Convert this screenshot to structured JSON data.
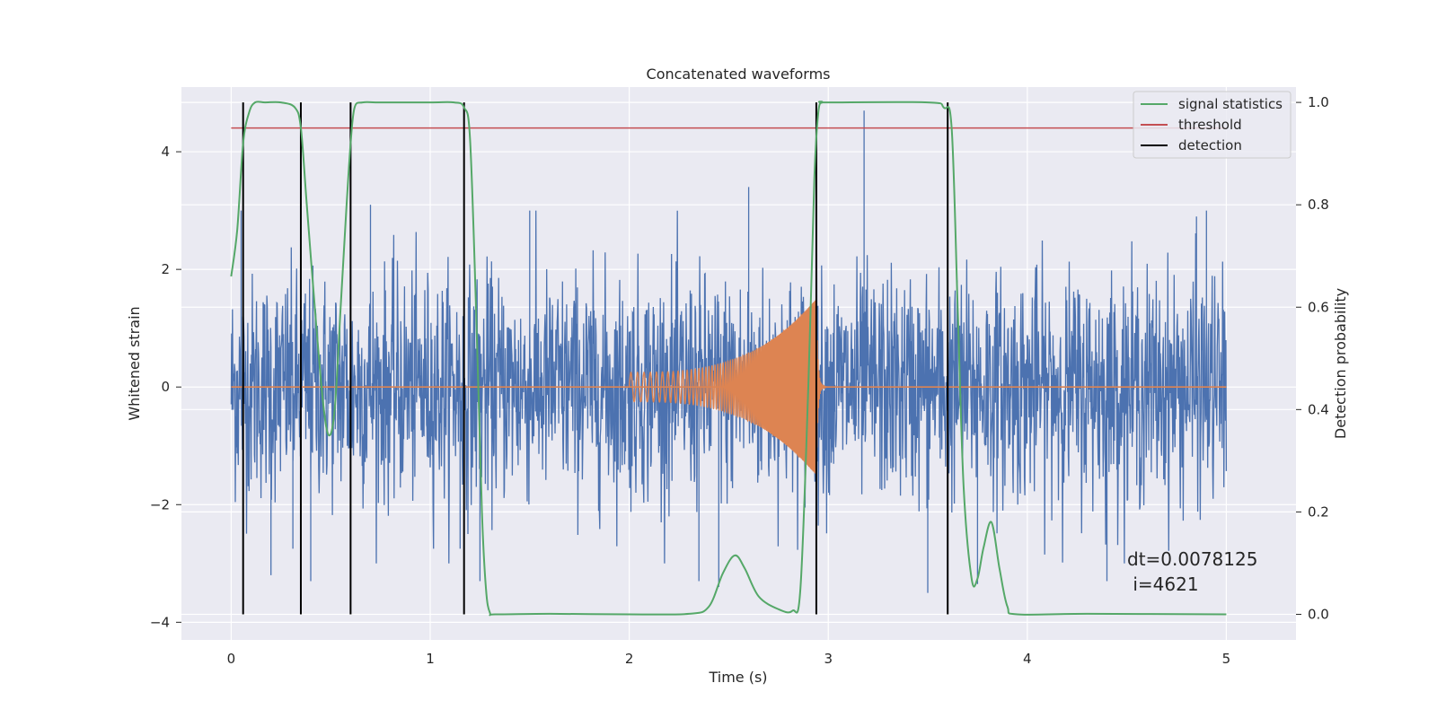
{
  "chart_data": {
    "type": "line",
    "title": "Concatenated waveforms",
    "xlabel": "Time (s)",
    "ylabel": "Whitened strain",
    "y2label": "Detection probability",
    "xlim": [
      -0.25,
      5.35
    ],
    "ylim": [
      -4.3,
      5.1
    ],
    "y2lim": [
      -0.05,
      1.03
    ],
    "xticks": [
      0,
      1,
      2,
      3,
      4,
      5
    ],
    "xtick_labels": [
      "0",
      "1",
      "2",
      "3",
      "4",
      "5"
    ],
    "yticks": [
      -4,
      -2,
      0,
      2,
      4
    ],
    "ytick_labels": [
      "−4",
      "−2",
      "0",
      "2",
      "4"
    ],
    "y2ticks": [
      0.0,
      0.2,
      0.4,
      0.6,
      0.8,
      1.0
    ],
    "y2tick_labels": [
      "0.0",
      "0.2",
      "0.4",
      "0.6",
      "0.8",
      "1.0"
    ],
    "grid": true,
    "legend_position": "top-right",
    "colors": {
      "background": "#eaeaf2",
      "grid": "#ffffff",
      "strain": "#4c72b0",
      "injection": "#dd8452",
      "signal_statistics": "#55a868",
      "threshold": "#c44e52",
      "detection": "#000000"
    },
    "series": [
      {
        "name": "",
        "axis": "left",
        "description_role": "whitened strain noise",
        "x_range": [
          0,
          5
        ],
        "sigma": 0.95,
        "spikes": [
          [
            0.06,
            -3.35
          ],
          [
            0.05,
            3.0
          ],
          [
            0.2,
            -3.2
          ],
          [
            0.31,
            -2.75
          ],
          [
            0.35,
            -1.5
          ],
          [
            0.4,
            -3.3
          ],
          [
            0.7,
            3.1
          ],
          [
            1.15,
            -2.75
          ],
          [
            1.25,
            -3.3
          ],
          [
            1.5,
            3.0
          ],
          [
            2.35,
            -3.3
          ],
          [
            2.45,
            -3.4
          ],
          [
            2.6,
            3.4
          ],
          [
            3.18,
            4.7
          ],
          [
            3.5,
            -3.5
          ],
          [
            3.75,
            -3.35
          ],
          [
            4.4,
            -3.3
          ],
          [
            4.85,
            2.9
          ],
          [
            4.9,
            3.0
          ]
        ]
      },
      {
        "name": "",
        "axis": "left",
        "description_role": "injected chirp",
        "x": [
          2.0,
          2.94
        ],
        "amplitude_start": 0.25,
        "amplitude_end": 1.5,
        "frequency_start_hz": 30,
        "frequency_end_hz": 250
      },
      {
        "name": "signal statistics",
        "axis": "right",
        "x": [
          0.0,
          0.03,
          0.06,
          0.09,
          0.12,
          0.17,
          0.25,
          0.32,
          0.35,
          0.38,
          0.42,
          0.46,
          0.49,
          0.52,
          0.55,
          0.58,
          0.6,
          0.62,
          0.66,
          0.75,
          1.0,
          1.12,
          1.17,
          1.2,
          1.23,
          1.26,
          1.28,
          1.3,
          1.33,
          1.6,
          2.0,
          2.3,
          2.4,
          2.47,
          2.53,
          2.58,
          2.65,
          2.75,
          2.82,
          2.86,
          2.9,
          2.93,
          2.95,
          2.97,
          3.0,
          3.5,
          3.58,
          3.62,
          3.65,
          3.68,
          3.72,
          3.75,
          3.78,
          3.82,
          3.86,
          3.9,
          3.95,
          4.3,
          5.0
        ],
        "values": [
          0.66,
          0.75,
          0.92,
          0.98,
          1.0,
          1.0,
          1.0,
          0.99,
          0.95,
          0.8,
          0.6,
          0.42,
          0.35,
          0.4,
          0.6,
          0.8,
          0.92,
          0.99,
          1.0,
          1.0,
          1.0,
          1.0,
          0.99,
          0.93,
          0.6,
          0.2,
          0.05,
          0.003,
          0.0,
          0.001,
          0.0,
          0.001,
          0.015,
          0.08,
          0.115,
          0.09,
          0.035,
          0.01,
          0.007,
          0.05,
          0.45,
          0.85,
          0.98,
          1.0,
          1.0,
          1.0,
          0.99,
          0.95,
          0.6,
          0.25,
          0.07,
          0.07,
          0.13,
          0.18,
          0.09,
          0.015,
          0.0,
          0.001,
          0.0
        ]
      },
      {
        "name": "threshold",
        "axis": "right",
        "x": [
          0.0,
          5.0
        ],
        "values": [
          0.95,
          0.95
        ]
      }
    ],
    "detections": {
      "name": "detection",
      "x": [
        0.06,
        0.35,
        0.6,
        1.17,
        2.94,
        3.6
      ],
      "y_range": [
        0.0,
        1.0
      ]
    },
    "legend": [
      "signal statistics",
      "threshold",
      "detection"
    ],
    "annotation": {
      "line1": "dt=0.0078125",
      "line2": " i=4621"
    }
  }
}
